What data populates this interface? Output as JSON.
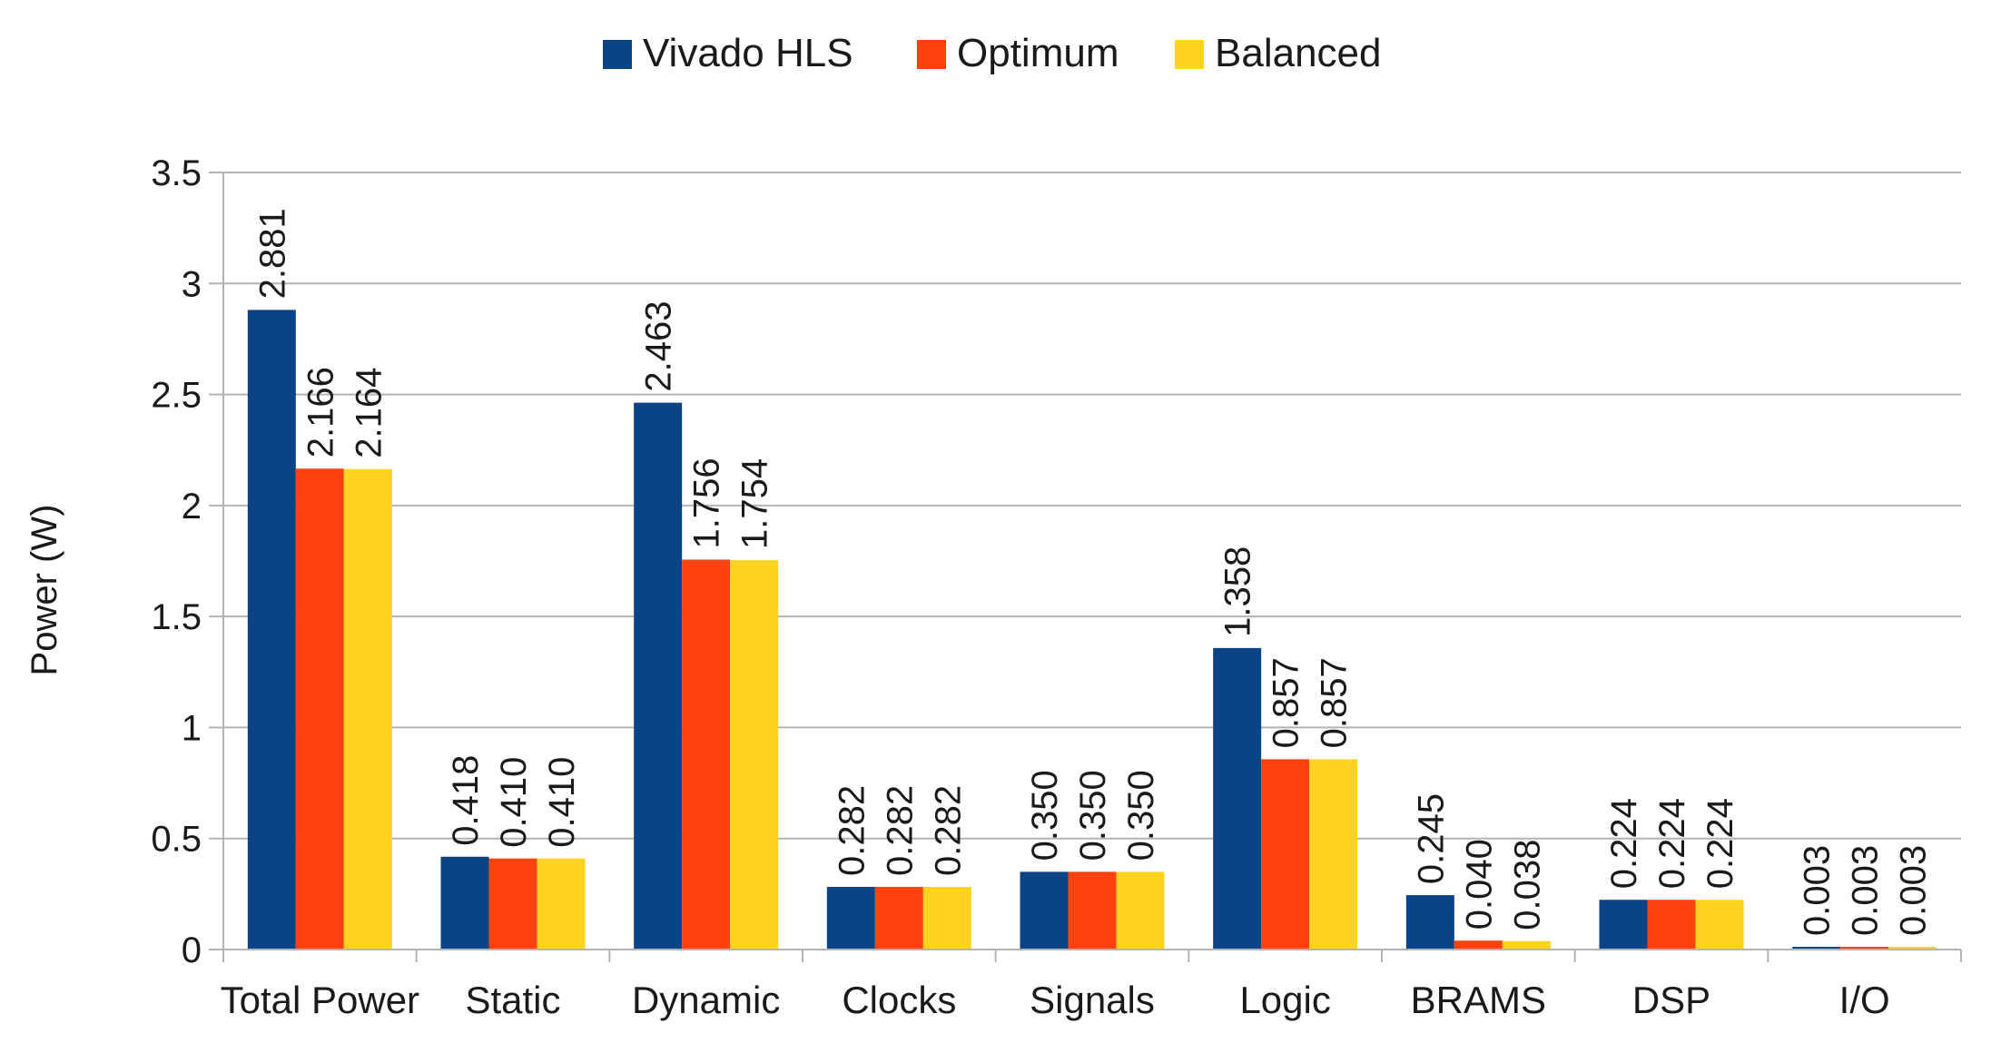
{
  "chart_data": {
    "type": "bar",
    "title": "",
    "xlabel": "",
    "ylabel": "Power (W)",
    "ylim": [
      0,
      3.5
    ],
    "yticks": [
      {
        "value": 0,
        "label": "0"
      },
      {
        "value": 0.5,
        "label": "0.5"
      },
      {
        "value": 1,
        "label": "1"
      },
      {
        "value": 1.5,
        "label": "1.5"
      },
      {
        "value": 2,
        "label": "2"
      },
      {
        "value": 2.5,
        "label": "2.5"
      },
      {
        "value": 3,
        "label": "3"
      },
      {
        "value": 3.5,
        "label": "3.5"
      }
    ],
    "grid": true,
    "legend_position": "top-center",
    "categories": [
      "Total Power",
      "Static",
      "Dynamic",
      "Clocks",
      "Signals",
      "Logic",
      "BRAMS",
      "DSP",
      "I/O"
    ],
    "series": [
      {
        "name": "Vivado HLS",
        "color": "#0b4387",
        "values": [
          2.881,
          0.418,
          2.463,
          0.282,
          0.35,
          1.358,
          0.245,
          0.224,
          0.003
        ],
        "labels": [
          "2.881",
          "0.418",
          "2.463",
          "0.282",
          "0.350",
          "1.358",
          "0.245",
          "0.224",
          "0.003"
        ]
      },
      {
        "name": "Optimum",
        "color": "#ff420e",
        "values": [
          2.166,
          0.41,
          1.756,
          0.282,
          0.35,
          0.857,
          0.04,
          0.224,
          0.003
        ],
        "labels": [
          "2.166",
          "0.410",
          "1.756",
          "0.282",
          "0.350",
          "0.857",
          "0.040",
          "0.224",
          "0.003"
        ]
      },
      {
        "name": "Balanced",
        "color": "#ffd320",
        "values": [
          2.164,
          0.41,
          1.754,
          0.282,
          0.35,
          0.857,
          0.038,
          0.224,
          0.003
        ],
        "labels": [
          "2.164",
          "0.410",
          "1.754",
          "0.282",
          "0.350",
          "0.857",
          "0.038",
          "0.224",
          "0.003"
        ]
      }
    ]
  }
}
